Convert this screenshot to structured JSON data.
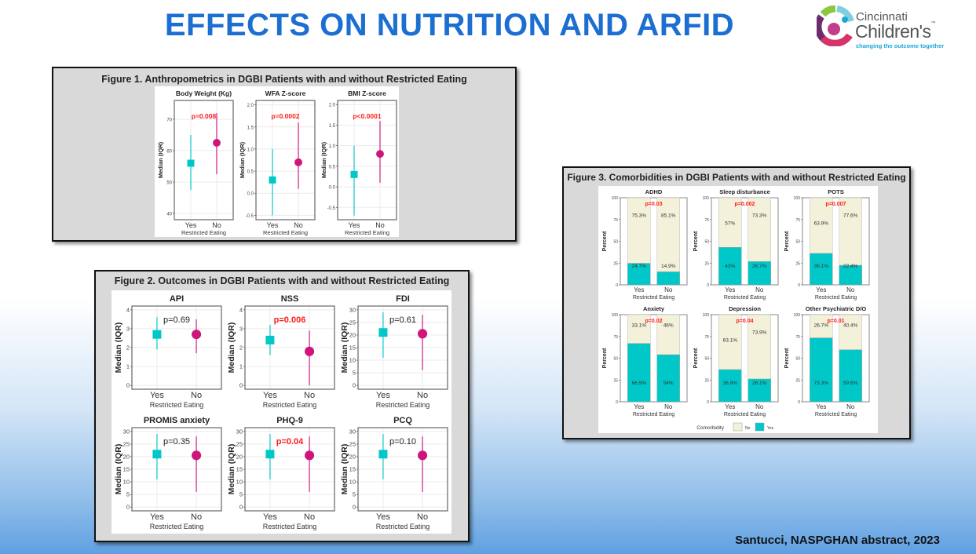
{
  "slide": {
    "title": "EFFECTS ON NUTRITION AND ARFID",
    "footer": "Santucci, NASPGHAN abstract, 2023"
  },
  "logo": {
    "line1": "Cincinnati",
    "line2": "Children's",
    "tm": "™",
    "tagline": "changing the outcome together"
  },
  "colors": {
    "title_blue": "#1c6fd0",
    "yes_teal": "#00c8c8",
    "no_magenta": "#d0157a",
    "no_bar_fill": "#f3f1da",
    "significant_red": "#ff1a1a"
  },
  "chart_data": [
    {
      "id": "figure1",
      "type": "scatter",
      "title": "Figure 1. Anthropometrics in DGBI Patients with and without Restricted Eating",
      "xlabel": "Restricted Eating",
      "ylabel": "Median (IQR)",
      "categories": [
        "Yes",
        "No"
      ],
      "panels": [
        {
          "title": "Body Weight (Kg)",
          "p": "p=0.008",
          "significant": true,
          "ylim": [
            38,
            76
          ],
          "ticks": [
            "40",
            "50",
            "60",
            "70"
          ],
          "points": [
            {
              "median": 56,
              "q1": 47.5,
              "q3": 65
            },
            {
              "median": 62.5,
              "q1": 52.5,
              "q3": 72
            }
          ]
        },
        {
          "title": "WFA Z-score",
          "p": "p=0.0002",
          "significant": true,
          "ylim": [
            -0.6,
            2.1
          ],
          "ticks": [
            "-0.5",
            "0.0",
            "0.5",
            "1.0",
            "1.5",
            "2.0"
          ],
          "points": [
            {
              "median": 0.3,
              "q1": -0.5,
              "q3": 1.0
            },
            {
              "median": 0.7,
              "q1": 0.1,
              "q3": 1.6
            }
          ]
        },
        {
          "title": "BMI Z-score",
          "p": "p<0.0001",
          "significant": true,
          "ylim": [
            -0.8,
            2.1
          ],
          "ticks": [
            "-0.5",
            "0.0",
            "0.5",
            "1.0",
            "1.5",
            "2.0"
          ],
          "points": [
            {
              "median": 0.3,
              "q1": -0.7,
              "q3": 1.0
            },
            {
              "median": 0.8,
              "q1": 0.1,
              "q3": 1.6
            }
          ]
        }
      ]
    },
    {
      "id": "figure2",
      "type": "scatter",
      "title": "Figure 2. Outcomes in DGBI Patients with and without Restricted Eating",
      "xlabel": "Restricted Eating",
      "ylabel": "Median (IQR)",
      "categories": [
        "Yes",
        "No"
      ],
      "panels": [
        {
          "title": "API",
          "p": "p=0.69",
          "significant": false,
          "ylim": [
            -0.2,
            4.2
          ],
          "ticks": [
            "0",
            "1",
            "2",
            "3",
            "4"
          ],
          "points": [
            {
              "median": 2.7,
              "q1": 1.9,
              "q3": 3.6
            },
            {
              "median": 2.7,
              "q1": 1.7,
              "q3": 3.5
            }
          ]
        },
        {
          "title": "NSS",
          "p": "p=0.006",
          "significant": true,
          "ylim": [
            -0.2,
            4.2
          ],
          "ticks": [
            "0",
            "1",
            "2",
            "3",
            "4"
          ],
          "points": [
            {
              "median": 2.4,
              "q1": 1.6,
              "q3": 3.2
            },
            {
              "median": 1.8,
              "q1": 0,
              "q3": 2.9
            }
          ]
        },
        {
          "title": "FDI",
          "p": "p=0.61",
          "significant": false,
          "ylim": [
            -1.5,
            31.5
          ],
          "ticks": [
            "0",
            "5",
            "10",
            "15",
            "20",
            "25",
            "30"
          ],
          "points": [
            {
              "median": 21,
              "q1": 11,
              "q3": 29
            },
            {
              "median": 20.5,
              "q1": 6,
              "q3": 28
            }
          ]
        },
        {
          "title": "PROMIS anxiety",
          "p": "p=0.35",
          "significant": false,
          "ylim": [
            -1.5,
            31.5
          ],
          "ticks": [
            "0",
            "5",
            "10",
            "15",
            "20",
            "25",
            "30"
          ],
          "points": [
            {
              "median": 21,
              "q1": 11,
              "q3": 29
            },
            {
              "median": 20.5,
              "q1": 6,
              "q3": 28
            }
          ]
        },
        {
          "title": "PHQ-9",
          "p": "p=0.04",
          "significant": true,
          "ylim": [
            -1.5,
            31.5
          ],
          "ticks": [
            "0",
            "5",
            "10",
            "15",
            "20",
            "25",
            "30"
          ],
          "points": [
            {
              "median": 21,
              "q1": 11,
              "q3": 29
            },
            {
              "median": 20.5,
              "q1": 6,
              "q3": 28
            }
          ]
        },
        {
          "title": "PCQ",
          "p": "p=0.10",
          "significant": false,
          "ylim": [
            -1.5,
            31.5
          ],
          "ticks": [
            "0",
            "5",
            "10",
            "15",
            "20",
            "25",
            "30"
          ],
          "points": [
            {
              "median": 21,
              "q1": 11,
              "q3": 29
            },
            {
              "median": 20.5,
              "q1": 6,
              "q3": 28
            }
          ]
        }
      ]
    },
    {
      "id": "figure3",
      "type": "bar",
      "stacked": true,
      "title": "Figure 3. Comorbidities in DGBI Patients with and without Restricted Eating",
      "xlabel": "Restricted Eating",
      "ylabel": "Percent",
      "categories": [
        "Yes",
        "No"
      ],
      "ylim": [
        0,
        100
      ],
      "ticks": [
        "0",
        "25",
        "50",
        "75",
        "100"
      ],
      "legend": {
        "title": "Comorbidity",
        "entries": [
          "No",
          "Yes"
        ],
        "placement": "bottom"
      },
      "panels": [
        {
          "title": "ADHD",
          "p": "p=0.03",
          "yes_pct": [
            24.7,
            14.9
          ],
          "no_pct": [
            75.3,
            85.1
          ],
          "yes_labels": [
            "24.7%",
            "14.9%"
          ],
          "no_labels": [
            "75.3%",
            "85.1%"
          ]
        },
        {
          "title": "Sleep disturbance",
          "p": "p=0.002",
          "yes_pct": [
            43,
            26.7
          ],
          "no_pct": [
            57,
            73.3
          ],
          "yes_labels": [
            "43%",
            "26.7%"
          ],
          "no_labels": [
            "57%",
            "73.3%"
          ]
        },
        {
          "title": "POTS",
          "p": "p=0.007",
          "yes_pct": [
            36.1,
            22.4
          ],
          "no_pct": [
            63.9,
            77.6
          ],
          "yes_labels": [
            "36.1%",
            "22.4%"
          ],
          "no_labels": [
            "63.9%",
            "77.6%"
          ]
        },
        {
          "title": "Anxiety",
          "p": "p=0.02",
          "yes_pct": [
            66.9,
            54
          ],
          "no_pct": [
            33.1,
            46
          ],
          "yes_labels": [
            "66.9%",
            "54%"
          ],
          "no_labels": [
            "33.1%",
            "46%"
          ]
        },
        {
          "title": "Depression",
          "p": "p=0.04",
          "yes_pct": [
            36.9,
            26.1
          ],
          "no_pct": [
            63.1,
            73.9
          ],
          "yes_labels": [
            "36.9%",
            "26.1%"
          ],
          "no_labels": [
            "63.1%",
            "73.9%"
          ]
        },
        {
          "title": "Other Psychiatric D/O",
          "p": "p=0.01",
          "yes_pct": [
            73.3,
            59.6
          ],
          "no_pct": [
            26.7,
            40.4
          ],
          "yes_labels": [
            "73.3%",
            "59.6%"
          ],
          "no_labels": [
            "26.7%",
            "40.4%"
          ]
        }
      ]
    }
  ]
}
